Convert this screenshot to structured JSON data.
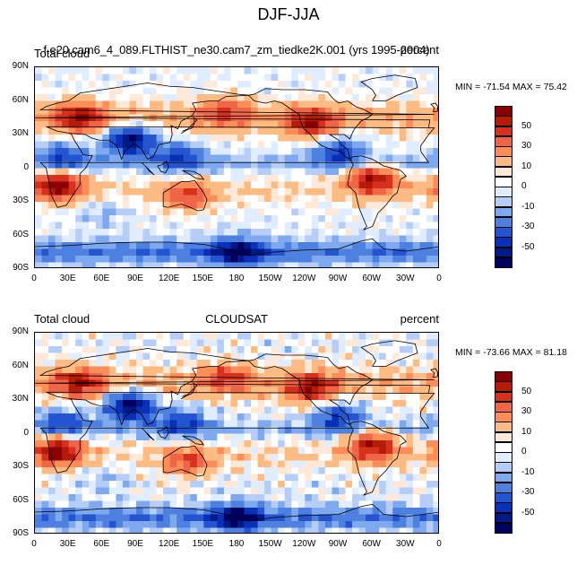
{
  "figure": {
    "title": "DJF-JJA",
    "lat_labels": [
      "90N",
      "60N",
      "30N",
      "0",
      "30S",
      "60S",
      "90S"
    ],
    "lon_labels": [
      "0",
      "30E",
      "60E",
      "90E",
      "120E",
      "150E",
      "180",
      "150W",
      "120W",
      "90W",
      "60W",
      "30W",
      "0"
    ]
  },
  "panels": [
    {
      "left_label": "Total cloud",
      "center_label": "f.e20.cam6_4_089.FLTHIST_ne30.cam7_zm_tiedke2K.001 (yrs 1995-2004)",
      "right_label": "percent",
      "min_max": "MIN = -71.54  MAX =  75.42"
    },
    {
      "left_label": "Total cloud",
      "center_label": "CLOUDSAT",
      "right_label": "percent",
      "min_max": "MIN = -73.66  MAX =  81.18"
    }
  ],
  "colorbar": {
    "labels": [
      "50",
      "30",
      "10",
      "0",
      "-10",
      "-30",
      "-50"
    ],
    "colors": [
      "#8b0000",
      "#b51c08",
      "#d7301f",
      "#ef6548",
      "#fc8d59",
      "#fdbb84",
      "#fee8d8",
      "#ffffff",
      "#e0ecff",
      "#b6cef7",
      "#7ea9ee",
      "#4e80e0",
      "#2554d1",
      "#0a30b8",
      "#001a8a",
      "#000060"
    ]
  },
  "chart_data": {
    "type": "heatmap",
    "title": "DJF-JJA",
    "variable": "Total cloud",
    "units": "percent",
    "x_range_deg_east": [
      0,
      360
    ],
    "y_range_deg": [
      -90,
      90
    ],
    "contour_levels": [
      -60,
      -50,
      -40,
      -30,
      -20,
      -10,
      -5,
      0,
      5,
      10,
      20,
      30,
      40,
      50,
      60
    ],
    "series": [
      {
        "name": "f.e20.cam6_4_089.FLTHIST_ne30.cam7_zm_tiedke2K.001 (yrs 1995-2004)",
        "min": -71.54,
        "max": 75.42
      },
      {
        "name": "CLOUDSAT",
        "min": -73.66,
        "max": 81.18
      }
    ],
    "features": [
      {
        "lon": 20,
        "lat": -15,
        "value": 60
      },
      {
        "lon": 300,
        "lat": -10,
        "value": 55
      },
      {
        "lon": 40,
        "lat": 45,
        "value": 45
      },
      {
        "lon": 245,
        "lat": 40,
        "value": 45
      },
      {
        "lon": 135,
        "lat": -25,
        "value": 35
      },
      {
        "lon": 170,
        "lat": 50,
        "value": 30
      },
      {
        "lon": 85,
        "lat": 25,
        "value": -65
      },
      {
        "lon": 270,
        "lat": 15,
        "value": -40
      },
      {
        "lon": 130,
        "lat": 10,
        "value": -35
      },
      {
        "lon": 25,
        "lat": 10,
        "value": -35
      },
      {
        "lon": 180,
        "lat": -75,
        "value": -45
      },
      {
        "lon": 60,
        "lat": -40,
        "value": -10
      }
    ]
  }
}
